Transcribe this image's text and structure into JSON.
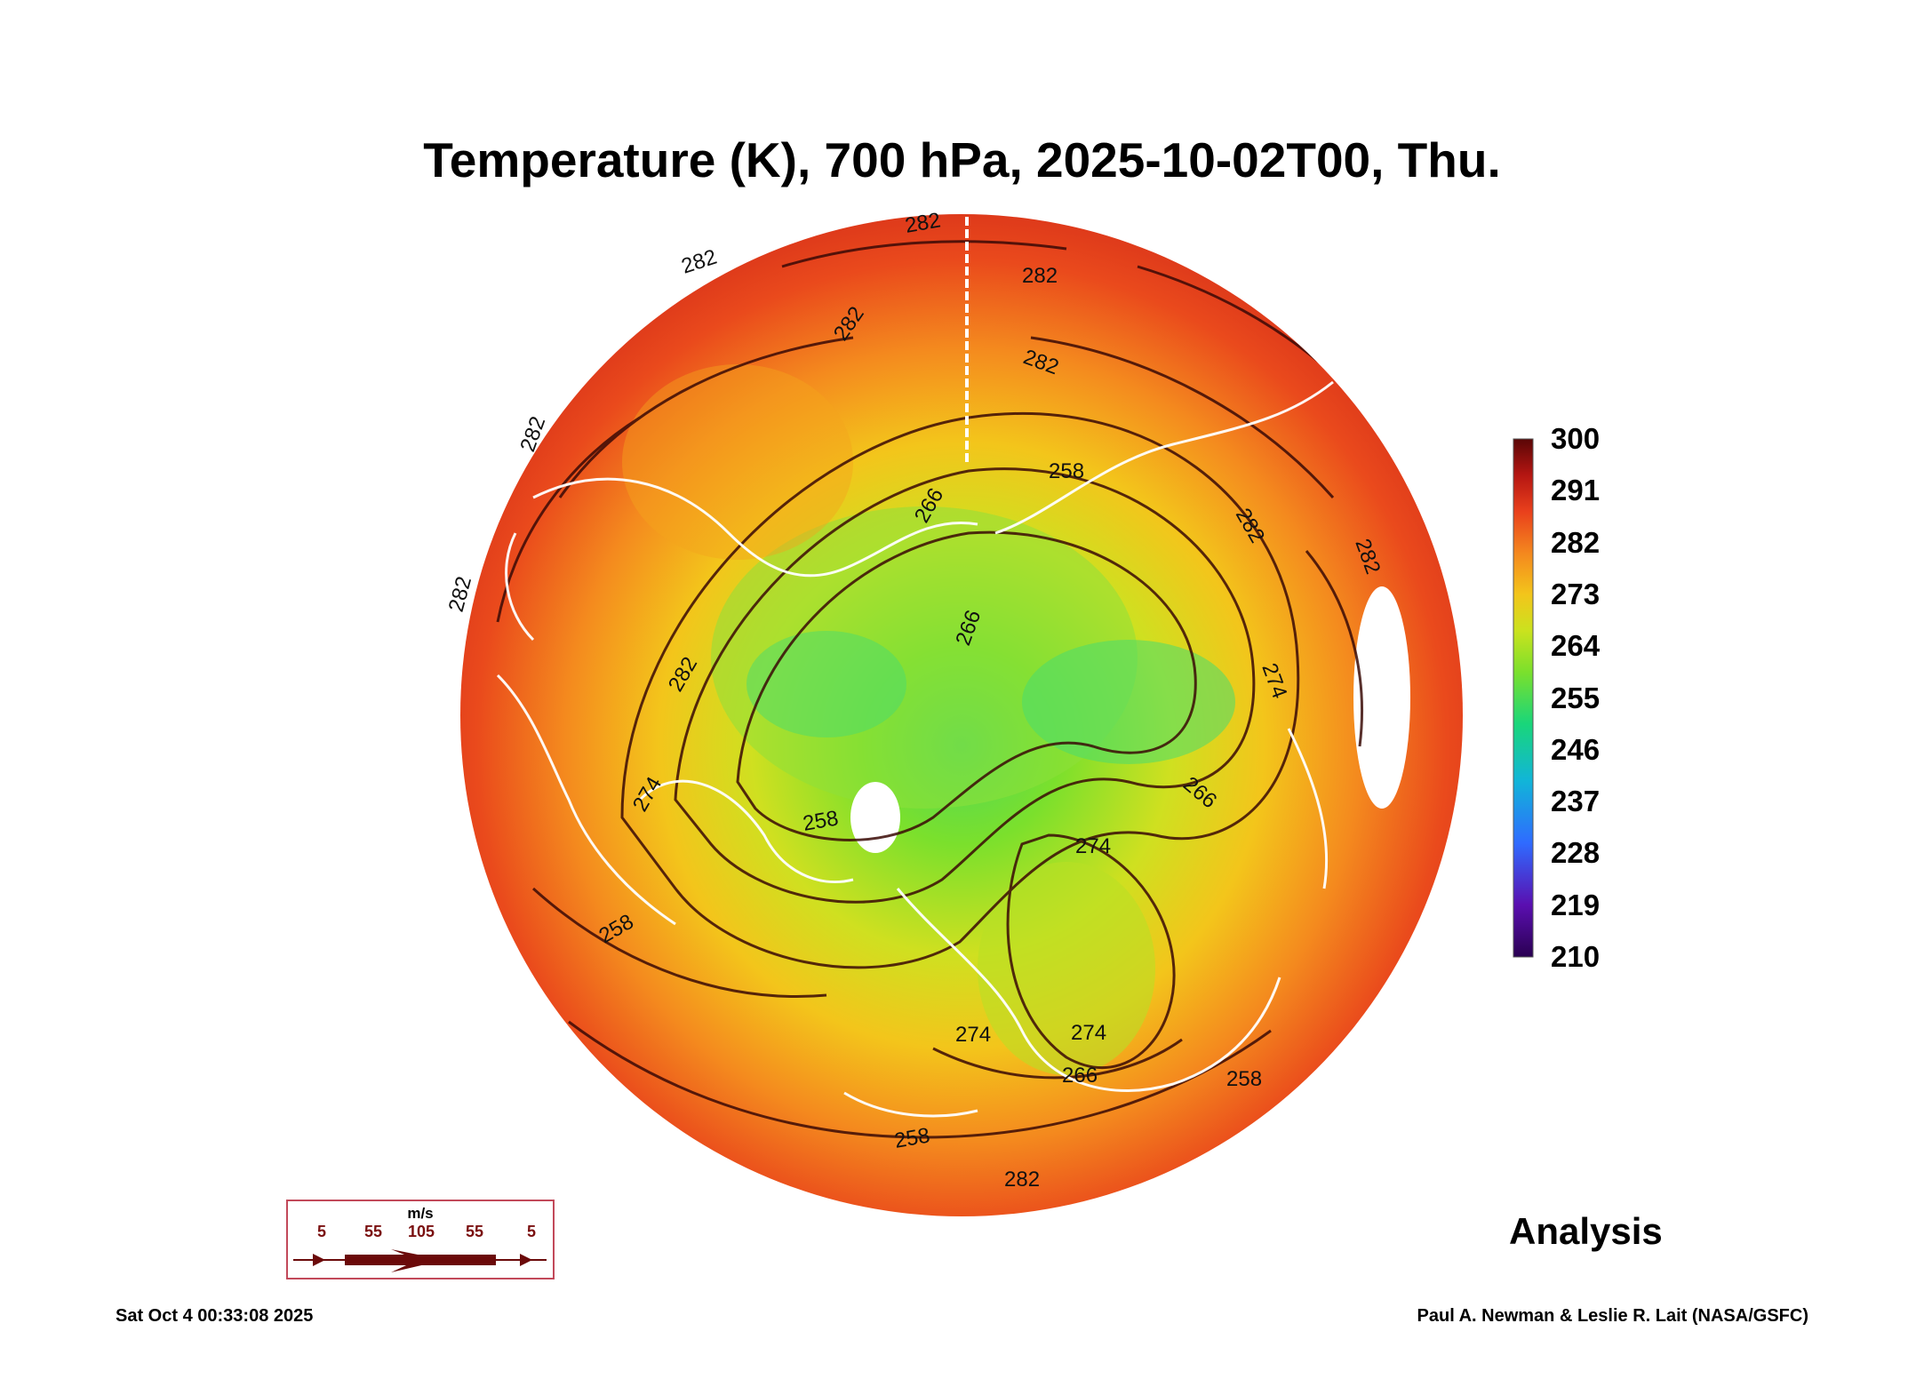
{
  "title": "Temperature (K), 700 hPa, 2025-10-02T00, Thu.",
  "colorbar": {
    "labels": [
      "300",
      "291",
      "282",
      "273",
      "264",
      "255",
      "246",
      "237",
      "228",
      "219",
      "210"
    ],
    "min": 210,
    "max": 300,
    "colors": [
      "#2a0052",
      "#5a0fb0",
      "#2f6bff",
      "#11b5d8",
      "#19d67a",
      "#7be02c",
      "#cbe21e",
      "#f3c51b",
      "#f4871e",
      "#e9401c",
      "#b51612",
      "#5a0606"
    ]
  },
  "contour_labels": [
    "282",
    "282",
    "282",
    "282",
    "282",
    "282",
    "282",
    "282",
    "282",
    "274",
    "274",
    "274",
    "274",
    "274",
    "266",
    "266",
    "266",
    "266",
    "258",
    "258",
    "258",
    "258",
    "258",
    "282",
    "282"
  ],
  "wind_legend": {
    "unit": "m/s",
    "values": [
      "5",
      "55",
      "105",
      "55",
      "5"
    ]
  },
  "product_label": "Analysis",
  "timestamp": "Sat Oct  4 00:33:08 2025",
  "credit": "Paul A. Newman & Leslie R. Lait (NASA/GSFC)"
}
